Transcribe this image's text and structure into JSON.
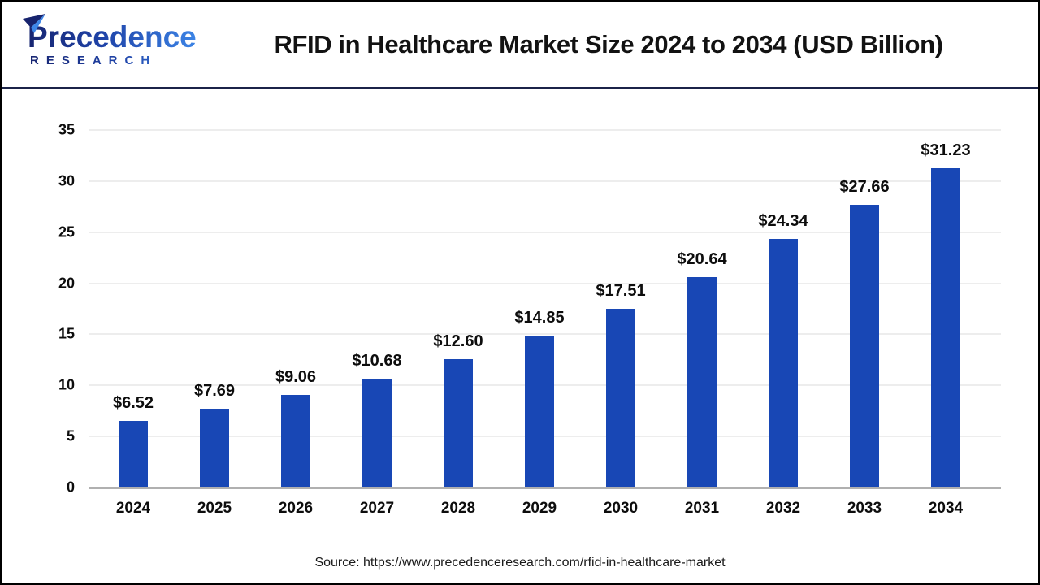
{
  "logo": {
    "word": "Precedence",
    "subword": "RESEARCH"
  },
  "header": {
    "title": "RFID in Healthcare Market Size 2024 to 2034 (USD Billion)"
  },
  "footer": {
    "source": "Source: https://www.precedenceresearch.com/rfid-in-healthcare-market"
  },
  "colors": {
    "bar": "#1847b5",
    "gridline": "#ededed",
    "axis": "#b0b0b0",
    "divider": "#1b2348",
    "logo_dark": "#17236d",
    "logo_light": "#3d86e8"
  },
  "chart_data": {
    "type": "bar",
    "title": "RFID in Healthcare Market Size 2024 to 2034 (USD Billion)",
    "categories": [
      "2024",
      "2025",
      "2026",
      "2027",
      "2028",
      "2029",
      "2030",
      "2031",
      "2032",
      "2033",
      "2034"
    ],
    "values": [
      6.52,
      7.69,
      9.06,
      10.68,
      12.6,
      14.85,
      17.51,
      20.64,
      24.34,
      27.66,
      31.23
    ],
    "value_labels": [
      "$6.52",
      "$7.69",
      "$9.06",
      "$10.68",
      "$12.60",
      "$14.85",
      "$17.51",
      "$20.64",
      "$24.34",
      "$27.66",
      "$31.23"
    ],
    "xlabel": "",
    "ylabel": "",
    "ylim": [
      0,
      35
    ],
    "yticks": [
      0,
      5,
      10,
      15,
      20,
      25,
      30,
      35
    ],
    "grid": true,
    "legend_position": "none",
    "bar_color": "#1847b5",
    "units": "USD Billion"
  }
}
